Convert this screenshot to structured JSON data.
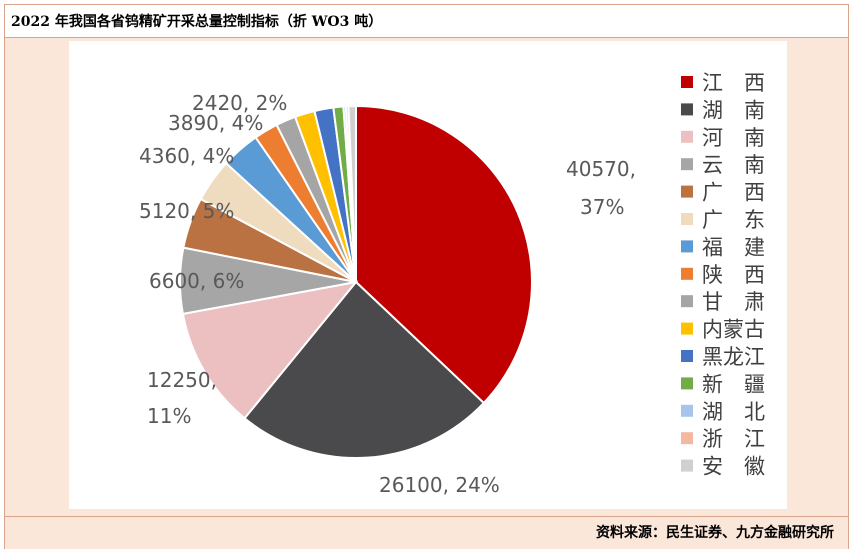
{
  "title": "2022 年我国各省钨精矿开采总量控制指标（折 WO3 吨）",
  "source": "资料来源：民生证券、九方金融研究所",
  "chart_data": {
    "type": "pie",
    "title": "2022 年我国各省钨精矿开采总量控制指标（折 WO3 吨）",
    "legend_position": "right",
    "slices": [
      {
        "name": "江　西",
        "value": 40570,
        "pct": "37%",
        "color": "#c00000",
        "label": "40570, 37%"
      },
      {
        "name": "湖　南",
        "value": 26100,
        "pct": "24%",
        "color": "#4a4a4c",
        "label": "26100, 24%"
      },
      {
        "name": "河　南",
        "value": 12250,
        "pct": "11%",
        "color": "#ecc0c0",
        "label": "12250, 11%"
      },
      {
        "name": "云　南",
        "value": 6600,
        "pct": "6%",
        "color": "#a6a6a6",
        "label": "6600, 6%"
      },
      {
        "name": "广　西",
        "value": 5120,
        "pct": "5%",
        "color": "#bb7243",
        "label": "5120, 5%"
      },
      {
        "name": "广　东",
        "value": 4360,
        "pct": "4%",
        "color": "#efdcbf",
        "label": "4360, 4%"
      },
      {
        "name": "福　建",
        "value": 3890,
        "pct": "4%",
        "color": "#5b9bd5",
        "label": "3890, 4%"
      },
      {
        "name": "陕　西",
        "value": 2420,
        "pct": "2%",
        "color": "#ed7d31",
        "label": "2420, 2%"
      },
      {
        "name": "甘　肃",
        "value": 2000,
        "color": "#a5a5a5"
      },
      {
        "name": "内蒙古",
        "value": 2000,
        "color": "#ffc000"
      },
      {
        "name": "黑龙江",
        "value": 1900,
        "color": "#4472c4"
      },
      {
        "name": "新　疆",
        "value": 1000,
        "color": "#70ad47"
      },
      {
        "name": "湖　北",
        "value": 250,
        "color": "#a9c4eb"
      },
      {
        "name": "浙　江",
        "value": 250,
        "color": "#f4b8a0"
      },
      {
        "name": "安　徽",
        "value": 750,
        "color": "#d0d0d0"
      }
    ]
  }
}
